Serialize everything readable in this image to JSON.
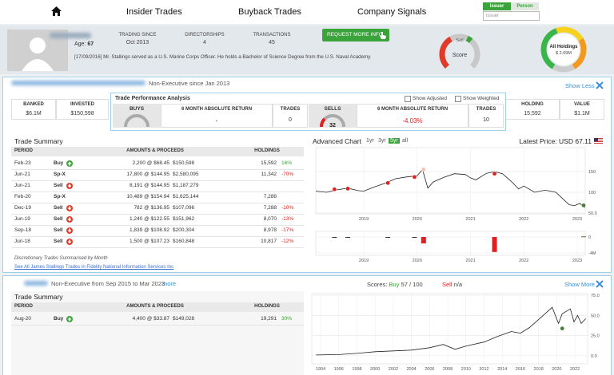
{
  "nav": {
    "items": [
      "Insider Trades",
      "Buyback Trades",
      "Company Signals"
    ],
    "toggle": [
      "Issuer",
      "Person"
    ],
    "search_placeholder": "issuer"
  },
  "profile": {
    "age_label": "Age:",
    "age": "67",
    "stats": [
      {
        "label": "TRADING SINCE",
        "value": "Oct 2013"
      },
      {
        "label": "DIRECTORSHIPS",
        "value": "4"
      },
      {
        "label": "TRANSACTIONS",
        "value": "45"
      }
    ],
    "button": "REQUEST MORE INFO",
    "bio": "[17/09/2016] Mr. Stallings served as a U.S. Marine Corps Officer. He holds a Bachelor of Science Degree from the U.S. Naval Academy.",
    "score_gauge": {
      "top": "Sell",
      "label": "Score"
    },
    "holdings_gauge": {
      "label": "All Holdings",
      "value": "$ 2.69M"
    }
  },
  "role1": {
    "role": "Non-Executive since Jan 2013",
    "toggle": "Show Less",
    "summary": [
      {
        "label": "BANKED",
        "value": "$6.1M"
      },
      {
        "label": "INVESTED",
        "value": "$150,598"
      },
      {
        "label": "HOLDING",
        "value": "15,592"
      },
      {
        "label": "VALUE",
        "value": "$1.1M"
      }
    ],
    "performance": {
      "title": "Trade Performance Analysis",
      "options": [
        "Show Adjusted",
        "Show Weighted"
      ],
      "buys": {
        "label": "BUYS",
        "return_label": "6 MONTH ABSOLUTE RETURN",
        "return": "-",
        "trades_label": "TRADES",
        "trades": "0"
      },
      "sells": {
        "label": "SELLS",
        "score": "32",
        "return_label": "6 MONTH ABSOLUTE RETURN",
        "return": "-4.03%",
        "trades_label": "TRADES",
        "trades": "10"
      }
    },
    "trade_summary": {
      "title": "Trade Summary",
      "columns": [
        "PERIOD",
        "AMOUNTS & PROCEEDS",
        "HOLDINGS"
      ],
      "rows": [
        {
          "period": "Feb-23",
          "type": "Buy",
          "icon": "up",
          "amount": "2,200 @ $68.45",
          "proceeds": "$150,598",
          "holdings": "15,592",
          "change": "16%"
        },
        {
          "period": "Jun-21",
          "type": "Sp-X",
          "amount": "17,800 @ $144.95",
          "proceeds": "$2,580,095",
          "holdings": "11,342",
          "change": "-70%"
        },
        {
          "period": "Jun-21",
          "type": "Sell",
          "icon": "down",
          "amount": "8,191 @ $144.95",
          "proceeds": "$1,187,279"
        },
        {
          "period": "Feb-20",
          "type": "Sp-X",
          "amount": "10,489 @ $154.94",
          "proceeds": "$1,625,144",
          "holdings": "7,288"
        },
        {
          "period": "Dec-19",
          "type": "Sell",
          "icon": "down",
          "amount": "782 @ $136.95",
          "proceeds": "$107,096",
          "holdings": "7,288",
          "change": "-10%"
        },
        {
          "period": "Jun-19",
          "type": "Sell",
          "icon": "down",
          "amount": "1,240 @ $122.55",
          "proceeds": "$151,962",
          "holdings": "8,070",
          "change": "-13%"
        },
        {
          "period": "Sep-18",
          "type": "Sell",
          "icon": "down",
          "amount": "1,839 @ $108.92",
          "proceeds": "$200,304",
          "holdings": "8,978",
          "change": "-17%"
        },
        {
          "period": "Jun-18",
          "type": "Sell",
          "icon": "down",
          "amount": "1,500 @ $107.23",
          "proceeds": "$160,848",
          "holdings": "10,817",
          "change": "-12%"
        }
      ],
      "note": "Discretionary Trades Summarised by Month",
      "link": "See All James Stallings Trades in Fidelity National Information Services Inc"
    },
    "chart": {
      "title": "Advanced Chart",
      "ranges": [
        "1yr",
        "3yr",
        "5yr",
        "all"
      ],
      "selected_range": "5yr",
      "latest_price": "Latest Price: USD 67.11",
      "price": {
        "type": "line",
        "color": "#222222",
        "x": [
          2018.1,
          2018.3,
          2018.5,
          2018.7,
          2018.9,
          2019.0,
          2019.2,
          2019.4,
          2019.6,
          2019.8,
          2020.0,
          2020.1,
          2020.2,
          2020.3,
          2020.5,
          2020.7,
          2020.9,
          2021.0,
          2021.1,
          2021.3,
          2021.45,
          2021.6,
          2021.8,
          2021.9,
          2022.0,
          2022.2,
          2022.4,
          2022.6,
          2022.7,
          2022.85,
          2022.95,
          2023.05,
          2023.15
        ],
        "values": [
          103,
          100,
          106,
          110,
          104,
          103,
          113,
          122,
          133,
          137,
          140,
          155,
          110,
          125,
          136,
          145,
          143,
          135,
          130,
          146,
          150,
          145,
          122,
          108,
          115,
          100,
          105,
          100,
          88,
          70,
          68,
          73,
          63
        ],
        "xlim": [
          2018.1,
          2023.15
        ],
        "ylim": [
          48,
          208
        ],
        "xticks": [
          2019,
          2020,
          2021,
          2022,
          2023
        ],
        "yticks": [
          150,
          100,
          {
            "value": 50,
            "label": "50.0"
          }
        ],
        "markers": {
          "x": [
            2018.45,
            2018.7,
            2019.45,
            2019.95,
            2020.12,
            2021.45,
            2023.12
          ],
          "values": [
            107.23,
            108.92,
            122.55,
            136.95,
            154.94,
            144.95,
            68.45
          ],
          "colors": [
            "#e02020",
            "#e02020",
            "#e02020",
            "#e02020",
            "#f2c0b0",
            "#e02020",
            "#4a7a3a"
          ]
        }
      },
      "volume": {
        "type": "bar",
        "x": [
          2018.45,
          2018.7,
          2019.45,
          2019.95,
          2020.12,
          2021.45,
          2023.12
        ],
        "values": [
          -160848,
          -200304,
          -151962,
          -107096,
          -1625144,
          -3767374,
          150598
        ],
        "colors": [
          "#333333",
          "#333333",
          "#333333",
          "#333333",
          "#e02020",
          "#e02020",
          "#4a7a3a"
        ],
        "xlim": [
          2018.1,
          2023.15
        ],
        "ylim": [
          -4600000,
          1400000
        ],
        "xticks": [
          2019,
          2020,
          2021,
          2022,
          2023
        ],
        "yticks": [
          0,
          {
            "value": -4000000,
            "label": "-4M"
          }
        ]
      }
    }
  },
  "role2": {
    "role": "Non-Executive from Sep 2015 to Mar 2023",
    "more": "more",
    "toggle": "Show More",
    "scores": {
      "label": "Scores:",
      "buy_label": "Buy",
      "buy": "57",
      "out_of": "/ 100",
      "sell_label": "Sell",
      "sell": "n/a"
    },
    "trade_summary": {
      "title": "Trade Summary",
      "columns": [
        "PERIOD",
        "AMOUNTS & PROCEEDS",
        "HOLDINGS"
      ],
      "rows": [
        {
          "period": "Aug-20",
          "type": "Buy",
          "icon": "up",
          "amount": "4,400 @ $33.87",
          "proceeds": "$149,028",
          "holdings": "19,291",
          "change": "30%"
        }
      ]
    },
    "chart": {
      "price": {
        "type": "line",
        "color": "#222222",
        "x": [
          1993.5,
          1996,
          1998,
          2000,
          2002,
          2004,
          2006,
          2007.5,
          2008.8,
          2010,
          2012,
          2013.5,
          2015,
          2016,
          2017,
          2018,
          2019,
          2019.5,
          2020.2,
          2020.6,
          2021.5,
          2021.9,
          2022.3,
          2022.7,
          2023.2
        ],
        "values": [
          1,
          1.5,
          3,
          5,
          6,
          7,
          10,
          14,
          8,
          12,
          17,
          24,
          30,
          28,
          35,
          45,
          55,
          60,
          40,
          52,
          58,
          42,
          50,
          40,
          46
        ],
        "xlim": [
          1993.03,
          2023.4
        ],
        "ylim": [
          -10,
          77
        ],
        "xticks": [
          1994,
          1996,
          1998,
          2000,
          2002,
          2004,
          2006,
          2008,
          2010,
          2012,
          2014,
          2016,
          2018,
          2020,
          2022
        ],
        "yticks": [
          {
            "value": 75,
            "label": "75.0"
          },
          {
            "value": 50,
            "label": "50.0"
          },
          {
            "value": 25,
            "label": "25.0"
          },
          {
            "value": 0,
            "label": "0.0"
          }
        ],
        "markers": {
          "x": [
            2020.6
          ],
          "values": [
            33.87
          ],
          "colors": [
            "#4a7a3a"
          ]
        }
      }
    }
  }
}
